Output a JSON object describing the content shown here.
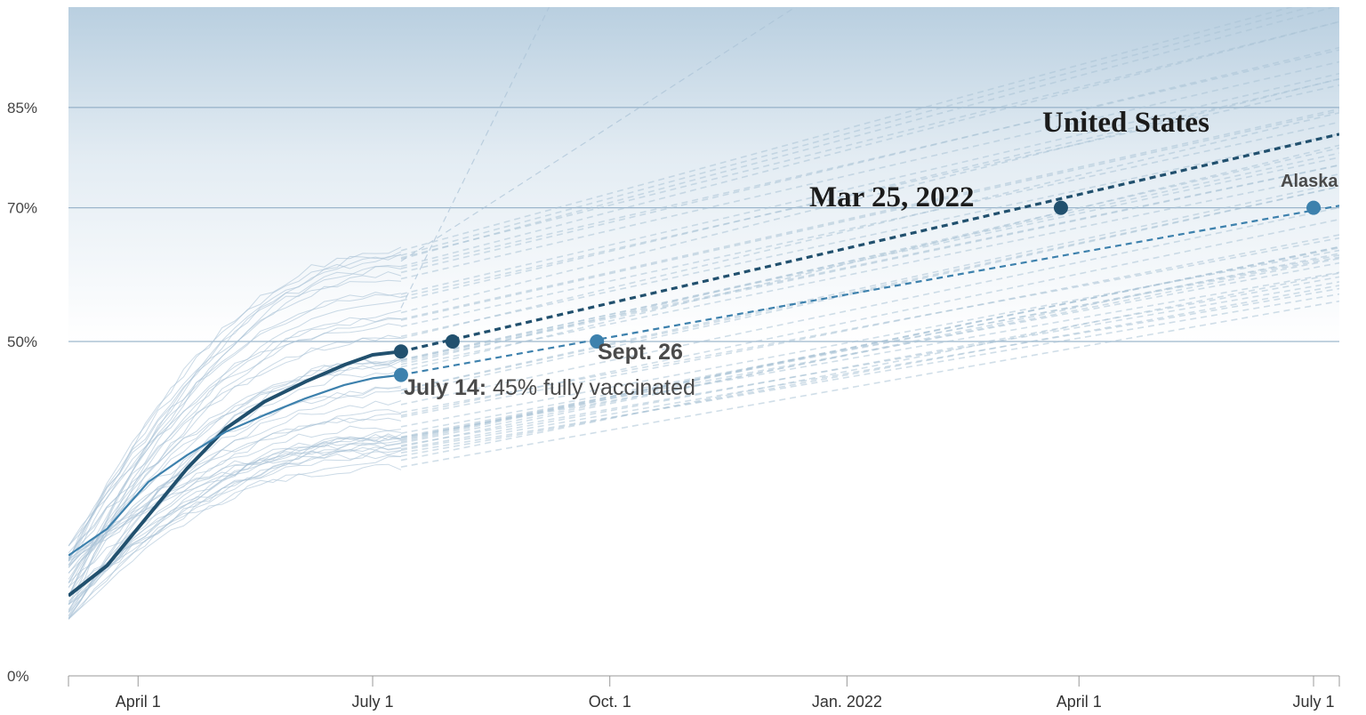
{
  "chart_data": {
    "type": "line",
    "x_axis": {
      "type": "date",
      "range": [
        "2021-03-05",
        "2022-07-11"
      ],
      "ticks": [
        {
          "date": "2021-04-01",
          "label": "April 1"
        },
        {
          "date": "2021-07-01",
          "label": "July 1"
        },
        {
          "date": "2021-10-01",
          "label": "Oct. 1"
        },
        {
          "date": "2022-01-01",
          "label": "Jan. 2022"
        },
        {
          "date": "2022-04-01",
          "label": "April 1"
        },
        {
          "date": "2022-07-01",
          "label": "July 1"
        }
      ]
    },
    "y_axis": {
      "range": [
        0,
        100
      ],
      "ticks": [
        {
          "value": 0,
          "label": "0%"
        },
        {
          "value": 50,
          "label": "50%"
        },
        {
          "value": 70,
          "label": "70%"
        },
        {
          "value": 85,
          "label": "85%"
        }
      ]
    },
    "gridlines": [
      50,
      70,
      85
    ],
    "series": [
      {
        "name": "United States",
        "color": "#21506e",
        "actual": [
          [
            "2021-03-05",
            12
          ],
          [
            "2021-03-20",
            16.5
          ],
          [
            "2021-04-05",
            24
          ],
          [
            "2021-04-20",
            31
          ],
          [
            "2021-05-05",
            37
          ],
          [
            "2021-05-20",
            41
          ],
          [
            "2021-06-05",
            44
          ],
          [
            "2021-06-20",
            46.5
          ],
          [
            "2021-07-01",
            48
          ],
          [
            "2021-07-12",
            48.5
          ]
        ],
        "projection": [
          [
            "2021-07-12",
            48.5
          ],
          [
            "2022-07-11",
            81
          ]
        ],
        "markers": [
          {
            "date": "2021-07-12",
            "value": 48.5
          },
          {
            "date": "2021-08-01",
            "value": 50
          },
          {
            "date": "2022-03-25",
            "value": 70
          }
        ]
      },
      {
        "name": "Alaska",
        "color": "#3d81ad",
        "actual": [
          [
            "2021-03-05",
            18
          ],
          [
            "2021-03-20",
            22
          ],
          [
            "2021-04-05",
            29
          ],
          [
            "2021-04-20",
            33
          ],
          [
            "2021-05-05",
            36.5
          ],
          [
            "2021-05-20",
            39
          ],
          [
            "2021-06-05",
            41.5
          ],
          [
            "2021-06-20",
            43.5
          ],
          [
            "2021-07-01",
            44.5
          ],
          [
            "2021-07-12",
            45
          ]
        ],
        "projection": [
          [
            "2021-07-12",
            45
          ],
          [
            "2022-07-11",
            70.3
          ]
        ],
        "markers": [
          {
            "date": "2021-07-12",
            "value": 45
          },
          {
            "date": "2021-09-26",
            "value": 50
          },
          {
            "date": "2022-07-01",
            "value": 70
          }
        ]
      }
    ],
    "background_states": {
      "count": 48,
      "color": "#a9c2d6",
      "july_level_range": [
        31,
        64
      ],
      "final_level_range": [
        55,
        100
      ]
    },
    "annotations": [
      {
        "id": "us_name",
        "text": "United States"
      },
      {
        "id": "us_date",
        "text": "Mar 25, 2022"
      },
      {
        "id": "ak_name",
        "text": "Alaska"
      },
      {
        "id": "sept",
        "text": "Sept. 26"
      },
      {
        "id": "july_bold",
        "text": "July 14:"
      },
      {
        "id": "july_rest",
        "text": " 45% fully vaccinated"
      }
    ]
  }
}
